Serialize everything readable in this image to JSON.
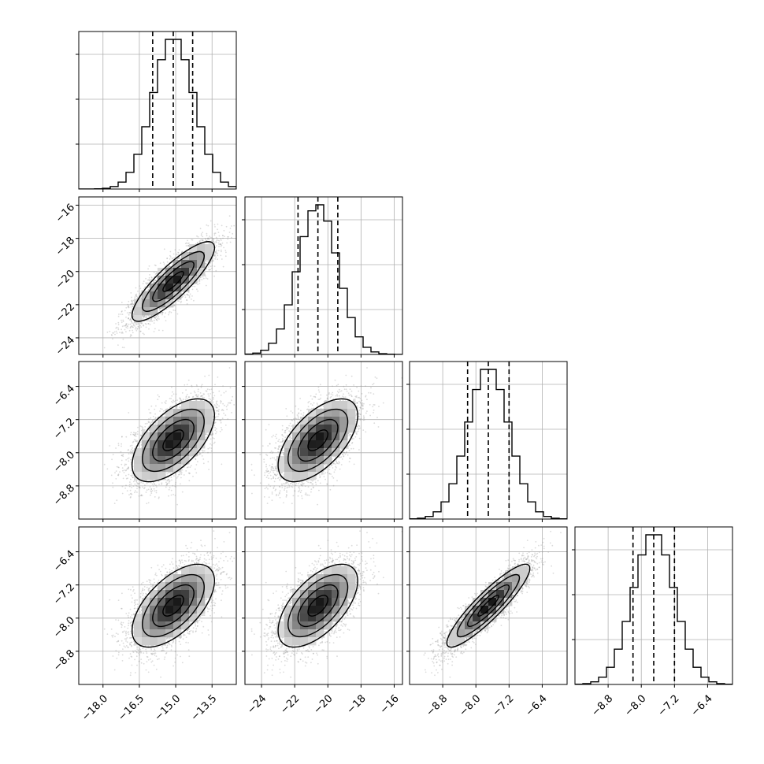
{
  "chart_data": {
    "type": "corner",
    "title": "",
    "grid": true,
    "parameters": [
      {
        "index": 0,
        "range": [
          -19.0,
          -12.5
        ],
        "ticks": [
          -18.0,
          -16.5,
          -15.0,
          -13.5
        ],
        "tick_labels": [
          "−18.0",
          "−16.5",
          "−15.0",
          "−13.5"
        ],
        "mean": -15.1,
        "sd": 0.85,
        "quantiles": [
          -15.95,
          -15.1,
          -14.3
        ]
      },
      {
        "index": 1,
        "range": [
          -25.0,
          -15.5
        ],
        "ticks": [
          -24,
          -22,
          -20,
          -18,
          -16
        ],
        "tick_labels": [
          "−24",
          "−22",
          "−20",
          "−18",
          "−16"
        ],
        "mean": -20.6,
        "sd": 1.2,
        "quantiles": [
          -21.8,
          -20.6,
          -19.4
        ]
      },
      {
        "index": 2,
        "range": [
          -9.6,
          -5.8
        ],
        "ticks": [
          -8.8,
          -8.0,
          -7.2,
          -6.4
        ],
        "tick_labels": [
          "−8.8",
          "−8.0",
          "−7.2",
          "−6.4"
        ],
        "mean": -7.7,
        "sd": 0.5,
        "quantiles": [
          -8.2,
          -7.7,
          -7.2
        ]
      },
      {
        "index": 3,
        "range": [
          -9.6,
          -5.8
        ],
        "ticks": [
          -8.8,
          -8.0,
          -7.2,
          -6.4
        ],
        "tick_labels": [
          "−8.8",
          "−8.0",
          "−7.2",
          "−6.4"
        ],
        "mean": -7.7,
        "sd": 0.5,
        "quantiles": [
          -8.2,
          -7.7,
          -7.2
        ]
      }
    ],
    "correlations": {
      "1-0": 0.85,
      "2-0": 0.6,
      "2-1": 0.6,
      "3-0": 0.6,
      "3-1": 0.6,
      "3-2": 0.9
    },
    "quantile_line_style": "dashed",
    "density_colormap": "greys",
    "contour_color": "#000000",
    "point_color": "#999999",
    "histogram_color": "#000000"
  }
}
